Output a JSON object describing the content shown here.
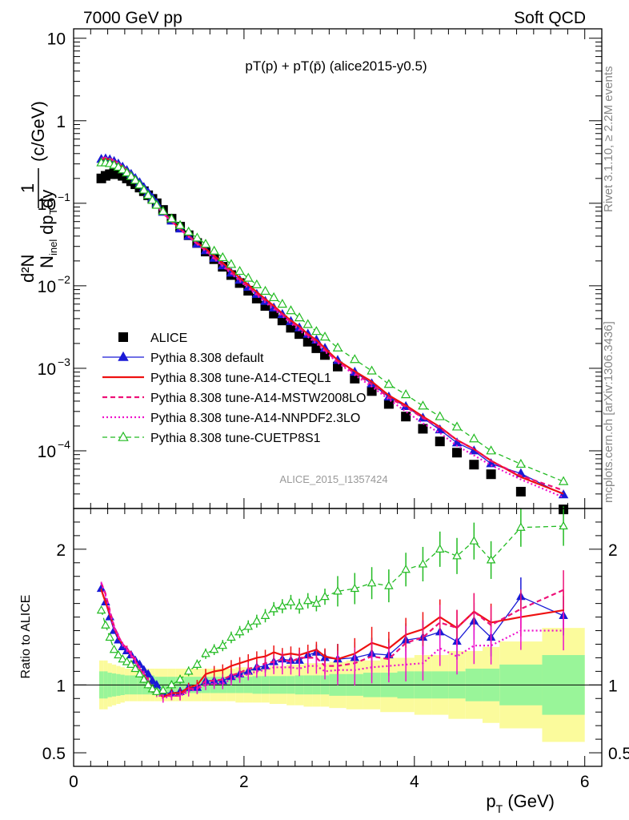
{
  "header": {
    "left": "7000 GeV pp",
    "right": "Soft QCD",
    "plot_title": "pT(p) + pT(p̄) (alice2015-y0.5)",
    "watermark": "ALICE_2015_I1357424",
    "side_top": "Rivet 3.1.10, ≥ 2.2M events",
    "side_bottom": "mcplots.cern.ch [arXiv:1306.3436]"
  },
  "colors": {
    "alice": "#000000",
    "default": "#1a1ad6",
    "cteql1": "#ee1111",
    "mstw": "#ee1177",
    "nnpdf": "#ee11cc",
    "cuetp8s1": "#22bb22",
    "band_stat": "#99f599",
    "band_syst": "#fbfb9c"
  },
  "chart_data": [
    {
      "type": "scatter",
      "panel": "main",
      "ylabel": "1/N_inel d²N/dp_T dy (c/GeV)",
      "yscale": "log",
      "ylim": [
        2e-05,
        13
      ],
      "xlim": [
        0,
        6.2
      ],
      "y_tick_labels": [
        "10",
        "1",
        "10^-1",
        "10^-2",
        "10^-3",
        "10^-4"
      ],
      "legend_position": "bottom-left",
      "x": [
        0.325,
        0.375,
        0.425,
        0.475,
        0.525,
        0.575,
        0.625,
        0.675,
        0.725,
        0.775,
        0.825,
        0.875,
        0.925,
        0.975,
        1.05,
        1.15,
        1.25,
        1.35,
        1.45,
        1.55,
        1.65,
        1.75,
        1.85,
        1.95,
        2.05,
        2.15,
        2.25,
        2.35,
        2.45,
        2.55,
        2.65,
        2.75,
        2.85,
        2.95,
        3.1,
        3.3,
        3.5,
        3.7,
        3.9,
        4.1,
        4.3,
        4.5,
        4.7,
        4.9,
        5.25,
        5.75
      ],
      "series": [
        {
          "name": "ALICE",
          "marker": "filled-square",
          "values": [
            0.2,
            0.215,
            0.225,
            0.23,
            0.225,
            0.215,
            0.2,
            0.185,
            0.17,
            0.155,
            0.14,
            0.125,
            0.113,
            0.1,
            0.083,
            0.065,
            0.052,
            0.041,
            0.033,
            0.026,
            0.021,
            0.017,
            0.0135,
            0.0108,
            0.0087,
            0.007,
            0.0057,
            0.0046,
            0.0038,
            0.0031,
            0.0026,
            0.0021,
            0.00175,
            0.00145,
            0.00105,
            0.00075,
            0.00053,
            0.00037,
            0.00026,
            0.000185,
            0.00013,
            9.5e-05,
            6.8e-05,
            5.2e-05,
            3.2e-05,
            1.95e-05
          ]
        },
        {
          "name": "Pythia 8.308 default",
          "marker": "filled-triangle",
          "values": [
            0.342,
            0.346,
            0.338,
            0.322,
            0.3,
            0.275,
            0.25,
            0.225,
            0.2,
            0.178,
            0.155,
            0.135,
            0.116,
            0.1,
            0.078,
            0.061,
            0.049,
            0.04,
            0.032,
            0.0267,
            0.0216,
            0.0175,
            0.0143,
            0.0117,
            0.0096,
            0.0079,
            0.0065,
            0.0054,
            0.0045,
            0.0037,
            0.0031,
            0.0026,
            0.0022,
            0.00175,
            0.00125,
            0.0009,
            0.00065,
            0.00045,
            0.000345,
            0.00025,
            0.00018,
            0.000125,
            0.0001,
            7e-05,
            5.3e-05,
            2.935e-05
          ]
        },
        {
          "name": "Pythia 8.308 tune-A14-CTEQL1",
          "marker": "solid-line",
          "values": [
            0.34,
            0.346,
            0.342,
            0.326,
            0.304,
            0.279,
            0.254,
            0.226,
            0.2,
            0.174,
            0.151,
            0.129,
            0.11,
            0.095,
            0.076,
            0.061,
            0.049,
            0.04,
            0.033,
            0.028,
            0.0231,
            0.0189,
            0.0154,
            0.0125,
            0.0103,
            0.0084,
            0.0069,
            0.0057,
            0.0046,
            0.0038,
            0.0032,
            0.0026,
            0.0022,
            0.00175,
            0.00125,
            0.00092,
            0.00069,
            0.00047,
            0.000355,
            0.00026,
            0.000195,
            0.000135,
            0.000105,
            7.6e-05,
            4.8e-05,
            3.02e-05
          ]
        },
        {
          "name": "Pythia 8.308 tune-A14-MSTW2008LO",
          "marker": "dashed-line",
          "values": [
            0.35,
            0.359,
            0.348,
            0.33,
            0.306,
            0.279,
            0.254,
            0.228,
            0.2,
            0.174,
            0.151,
            0.129,
            0.11,
            0.094,
            0.076,
            0.06,
            0.048,
            0.04,
            0.032,
            0.0267,
            0.0216,
            0.0176,
            0.0144,
            0.0118,
            0.0097,
            0.0079,
            0.0066,
            0.0054,
            0.0045,
            0.0036,
            0.0031,
            0.0025,
            0.0021,
            0.00165,
            0.0012,
            0.00087,
            0.00064,
            0.00044,
            0.00034,
            0.00025,
            0.00019,
            0.000135,
            0.000105,
            7.5e-05,
            5e-05,
            3.315e-05
          ]
        },
        {
          "name": "Pythia 8.308 tune-A14-NNPDF2.3LO",
          "marker": "dotted-line",
          "values": [
            0.35,
            0.357,
            0.347,
            0.328,
            0.306,
            0.279,
            0.252,
            0.226,
            0.2,
            0.174,
            0.151,
            0.128,
            0.11,
            0.094,
            0.075,
            0.06,
            0.048,
            0.039,
            0.032,
            0.026,
            0.0212,
            0.0172,
            0.014,
            0.0114,
            0.0094,
            0.0077,
            0.0063,
            0.0052,
            0.0043,
            0.0035,
            0.0029,
            0.0024,
            0.002,
            0.0016,
            0.00117,
            0.00083,
            0.0006,
            0.00042,
            0.0003,
            0.000215,
            0.000165,
            0.000115,
            8.8e-05,
            6.7e-05,
            4.5e-05,
            2.73e-05
          ]
        },
        {
          "name": "Pythia 8.308 tune-CUETP8S1",
          "marker": "open-triangle-dashed",
          "values": [
            0.31,
            0.31,
            0.304,
            0.29,
            0.275,
            0.255,
            0.234,
            0.212,
            0.19,
            0.167,
            0.145,
            0.125,
            0.109,
            0.095,
            0.08,
            0.065,
            0.054,
            0.045,
            0.038,
            0.032,
            0.0264,
            0.022,
            0.0182,
            0.015,
            0.0124,
            0.0103,
            0.0086,
            0.0072,
            0.006,
            0.005,
            0.0041,
            0.0034,
            0.0028,
            0.0024,
            0.00177,
            0.00128,
            0.00093,
            0.00064,
            0.00048,
            0.00035,
            0.00026,
            0.000195,
            0.00014,
            0.0001,
            6.9e-05,
            4.25e-05
          ]
        }
      ]
    },
    {
      "type": "scatter",
      "panel": "ratio",
      "xlabel": "p_T (GeV)",
      "ylabel": "Ratio to ALICE",
      "ylim": [
        0.4,
        2.3
      ],
      "xlim": [
        0,
        6.2
      ],
      "x_tick_labels": [
        "0",
        "2",
        "4",
        "6"
      ],
      "y_tick_labels": [
        "2",
        "1",
        "0.5"
      ],
      "reference_line": 1,
      "x": [
        0.325,
        0.375,
        0.425,
        0.475,
        0.525,
        0.575,
        0.625,
        0.675,
        0.725,
        0.775,
        0.825,
        0.875,
        0.925,
        0.975,
        1.05,
        1.15,
        1.25,
        1.35,
        1.45,
        1.55,
        1.65,
        1.75,
        1.85,
        1.95,
        2.05,
        2.15,
        2.25,
        2.35,
        2.45,
        2.55,
        2.65,
        2.75,
        2.85,
        2.95,
        3.1,
        3.3,
        3.5,
        3.7,
        3.9,
        4.1,
        4.3,
        4.5,
        4.7,
        4.9,
        5.25,
        5.75
      ],
      "bands": {
        "edges": [
          0.3,
          0.35,
          0.4,
          0.45,
          0.5,
          0.55,
          0.6,
          0.65,
          0.7,
          0.75,
          0.8,
          0.85,
          0.9,
          0.95,
          1.0,
          1.1,
          1.2,
          1.3,
          1.4,
          1.5,
          1.6,
          1.7,
          1.8,
          1.9,
          2.0,
          2.1,
          2.2,
          2.3,
          2.4,
          2.5,
          2.6,
          2.7,
          2.8,
          2.9,
          3.0,
          3.2,
          3.4,
          3.6,
          3.8,
          4.0,
          4.2,
          4.4,
          4.6,
          4.8,
          5.0,
          5.5,
          6.0
        ],
        "stat_half_width": [
          0.1,
          0.1,
          0.09,
          0.085,
          0.08,
          0.075,
          0.07,
          0.07,
          0.07,
          0.07,
          0.07,
          0.07,
          0.07,
          0.06,
          0.06,
          0.06,
          0.06,
          0.06,
          0.06,
          0.06,
          0.06,
          0.06,
          0.06,
          0.06,
          0.06,
          0.065,
          0.065,
          0.065,
          0.065,
          0.065,
          0.07,
          0.07,
          0.07,
          0.07,
          0.08,
          0.08,
          0.09,
          0.09,
          0.1,
          0.1,
          0.1,
          0.1,
          0.12,
          0.12,
          0.15,
          0.22
        ],
        "total_half_width": [
          0.18,
          0.18,
          0.16,
          0.15,
          0.14,
          0.13,
          0.12,
          0.12,
          0.12,
          0.12,
          0.12,
          0.12,
          0.12,
          0.12,
          0.12,
          0.12,
          0.12,
          0.12,
          0.12,
          0.12,
          0.12,
          0.12,
          0.12,
          0.13,
          0.13,
          0.13,
          0.13,
          0.14,
          0.14,
          0.15,
          0.15,
          0.16,
          0.16,
          0.16,
          0.17,
          0.18,
          0.18,
          0.2,
          0.2,
          0.22,
          0.22,
          0.25,
          0.25,
          0.28,
          0.32,
          0.42
        ]
      },
      "series": [
        {
          "name": "Pythia 8.308 default",
          "values": [
            1.71,
            1.61,
            1.5,
            1.4,
            1.33,
            1.28,
            1.25,
            1.22,
            1.18,
            1.15,
            1.11,
            1.08,
            1.03,
            1.0,
            0.94,
            0.94,
            0.95,
            0.98,
            0.98,
            1.03,
            1.03,
            1.03,
            1.06,
            1.08,
            1.1,
            1.13,
            1.14,
            1.17,
            1.19,
            1.18,
            1.18,
            1.22,
            1.24,
            1.2,
            1.19,
            1.2,
            1.23,
            1.22,
            1.33,
            1.35,
            1.39,
            1.32,
            1.47,
            1.35,
            1.65,
            1.51
          ]
        },
        {
          "name": "Pythia 8.308 tune-A14-CTEQL1",
          "values": [
            1.7,
            1.61,
            1.52,
            1.42,
            1.35,
            1.3,
            1.27,
            1.22,
            1.18,
            1.12,
            1.08,
            1.03,
            0.97,
            0.95,
            0.91,
            0.94,
            0.94,
            0.98,
            1.0,
            1.08,
            1.1,
            1.11,
            1.14,
            1.16,
            1.18,
            1.2,
            1.21,
            1.24,
            1.22,
            1.23,
            1.22,
            1.24,
            1.26,
            1.21,
            1.19,
            1.23,
            1.31,
            1.27,
            1.37,
            1.41,
            1.5,
            1.42,
            1.54,
            1.46,
            1.5,
            1.55
          ]
        },
        {
          "name": "Pythia 8.308 tune-A14-MSTW2008LO",
          "values": [
            1.75,
            1.67,
            1.55,
            1.43,
            1.36,
            1.3,
            1.27,
            1.23,
            1.18,
            1.12,
            1.08,
            1.03,
            0.97,
            0.94,
            0.92,
            0.92,
            0.92,
            0.97,
            0.97,
            1.03,
            1.03,
            1.04,
            1.07,
            1.09,
            1.12,
            1.13,
            1.16,
            1.17,
            1.19,
            1.17,
            1.2,
            1.2,
            1.2,
            1.14,
            1.14,
            1.16,
            1.21,
            1.19,
            1.31,
            1.35,
            1.46,
            1.42,
            1.54,
            1.44,
            1.56,
            1.7
          ]
        },
        {
          "name": "Pythia 8.308 tune-A14-NNPDF2.3LO",
          "values": [
            1.75,
            1.66,
            1.54,
            1.42,
            1.36,
            1.3,
            1.26,
            1.22,
            1.18,
            1.12,
            1.08,
            1.02,
            0.97,
            0.94,
            0.9,
            0.92,
            0.92,
            0.95,
            0.97,
            1.0,
            1.01,
            1.01,
            1.04,
            1.06,
            1.08,
            1.1,
            1.11,
            1.13,
            1.13,
            1.13,
            1.12,
            1.14,
            1.14,
            1.1,
            1.11,
            1.11,
            1.13,
            1.14,
            1.15,
            1.16,
            1.27,
            1.21,
            1.29,
            1.29,
            1.4,
            1.4
          ]
        },
        {
          "name": "Pythia 8.308 tune-CUETP8S1",
          "values": [
            1.55,
            1.44,
            1.35,
            1.26,
            1.22,
            1.19,
            1.17,
            1.15,
            1.12,
            1.08,
            1.04,
            1.0,
            0.97,
            0.95,
            0.96,
            1.0,
            1.04,
            1.1,
            1.15,
            1.23,
            1.26,
            1.29,
            1.35,
            1.39,
            1.43,
            1.47,
            1.51,
            1.56,
            1.58,
            1.61,
            1.58,
            1.62,
            1.6,
            1.65,
            1.69,
            1.71,
            1.75,
            1.73,
            1.85,
            1.89,
            2.0,
            1.95,
            2.06,
            1.92,
            2.16,
            2.17
          ]
        }
      ]
    }
  ]
}
